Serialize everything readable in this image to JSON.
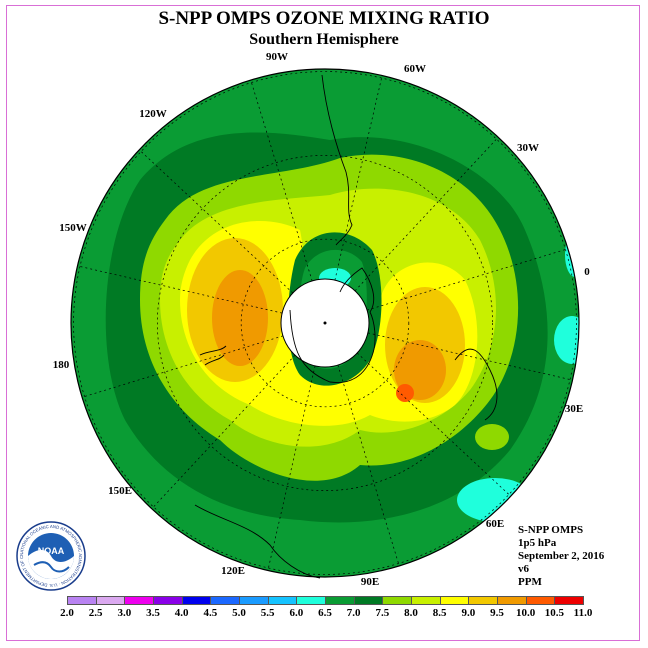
{
  "title": "S-NPP OMPS OZONE MIXING RATIO",
  "subtitle": "Southern Hemisphere",
  "longitude_labels": [
    "90W",
    "60W",
    "30W",
    "0",
    "30E",
    "60E",
    "90E",
    "120E",
    "150E",
    "180",
    "150W",
    "120W"
  ],
  "info": {
    "instrument": "S-NPP OMPS",
    "level": "1p5 hPa",
    "date": "September 2, 2016",
    "version": "v6",
    "units": "PPM"
  },
  "logo_text": "NOAA",
  "logo_ring_text": "NATIONAL OCEANIC AND ATMOSPHERIC ADMINISTRATION · U.S. DEPARTMENT OF COMMERCE",
  "colorbar": {
    "labels": [
      "2.0",
      "2.5",
      "3.0",
      "3.5",
      "4.0",
      "4.5",
      "5.0",
      "5.5",
      "6.0",
      "6.5",
      "7.0",
      "7.5",
      "8.0",
      "8.5",
      "9.0",
      "9.5",
      "10.0",
      "10.5",
      "11.0"
    ],
    "colors": [
      "#b983f2",
      "#dba9f0",
      "#ee00ee",
      "#8a00e8",
      "#0000ee",
      "#1b68ff",
      "#1a9bff",
      "#15c3ff",
      "#1fffdc",
      "#0a9c34",
      "#007a24",
      "#8fd900",
      "#c8f000",
      "#ffff00",
      "#f2c800",
      "#f09a00",
      "#ff5a00",
      "#ee0000",
      "#8c5a3c"
    ]
  },
  "map_colors": {
    "outer_ring": "#0a9c34",
    "dark_band": "#007a24",
    "band_75": "#8fd900",
    "band_80": "#c8f000",
    "band_85": "#ffff00",
    "band_90": "#f2c800",
    "band_95": "#f09a00",
    "band_100": "#ff5a00",
    "cyan_60": "#1fffdc",
    "pole_hole": "#ffffff"
  }
}
